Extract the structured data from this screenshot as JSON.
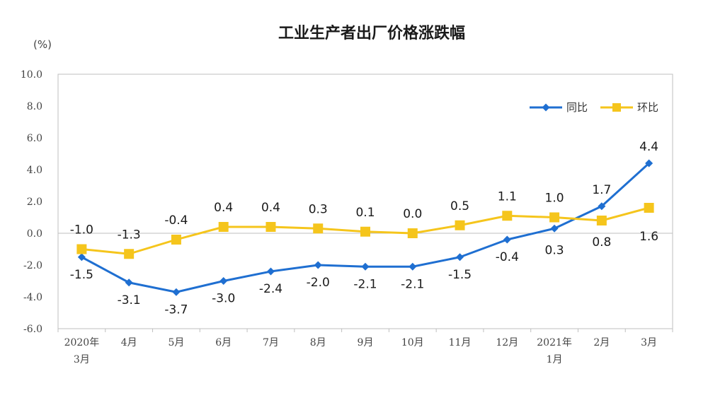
{
  "chart_data": {
    "type": "line",
    "title": "工业生产者出厂价格涨跌幅",
    "unit_label": "(%)",
    "ylim": [
      -6.0,
      10.0
    ],
    "yticks": [
      "10.0",
      "8.0",
      "6.0",
      "4.0",
      "2.0",
      "0.0",
      "-2.0",
      "-4.0",
      "-6.0"
    ],
    "ytick_values": [
      10,
      8,
      6,
      4,
      2,
      0,
      -2,
      -4,
      -6
    ],
    "categories": [
      [
        "2020年",
        "3月"
      ],
      [
        "4月"
      ],
      [
        "5月"
      ],
      [
        "6月"
      ],
      [
        "7月"
      ],
      [
        "8月"
      ],
      [
        "9月"
      ],
      [
        "10月"
      ],
      [
        "11月"
      ],
      [
        "12月"
      ],
      [
        "2021年",
        "1月"
      ],
      [
        "2月"
      ],
      [
        "3月"
      ]
    ],
    "legend_position": "top-right",
    "grid": false,
    "series": [
      {
        "name": "同比",
        "color": "#1f6fd1",
        "marker": "diamond",
        "values": [
          -1.5,
          -3.1,
          -3.7,
          -3.0,
          -2.4,
          -2.0,
          -2.1,
          -2.1,
          -1.5,
          -0.4,
          0.3,
          1.7,
          4.4
        ],
        "labels": [
          "-1.5",
          "-3.1",
          "-3.7",
          "-3.0",
          "-2.4",
          "-2.0",
          "-2.1",
          "-2.1",
          "-1.5",
          "-0.4",
          "0.3",
          "1.7",
          "4.4"
        ]
      },
      {
        "name": "环比",
        "color": "#f5c51c",
        "marker": "square",
        "values": [
          -1.0,
          -1.3,
          -0.4,
          0.4,
          0.4,
          0.3,
          0.1,
          0.0,
          0.5,
          1.1,
          1.0,
          0.8,
          1.6
        ],
        "labels": [
          "-1.0",
          "-1.3",
          "-0.4",
          "0.4",
          "0.4",
          "0.3",
          "0.1",
          "0.0",
          "0.5",
          "1.1",
          "1.0",
          "0.8",
          "1.6"
        ]
      }
    ]
  }
}
